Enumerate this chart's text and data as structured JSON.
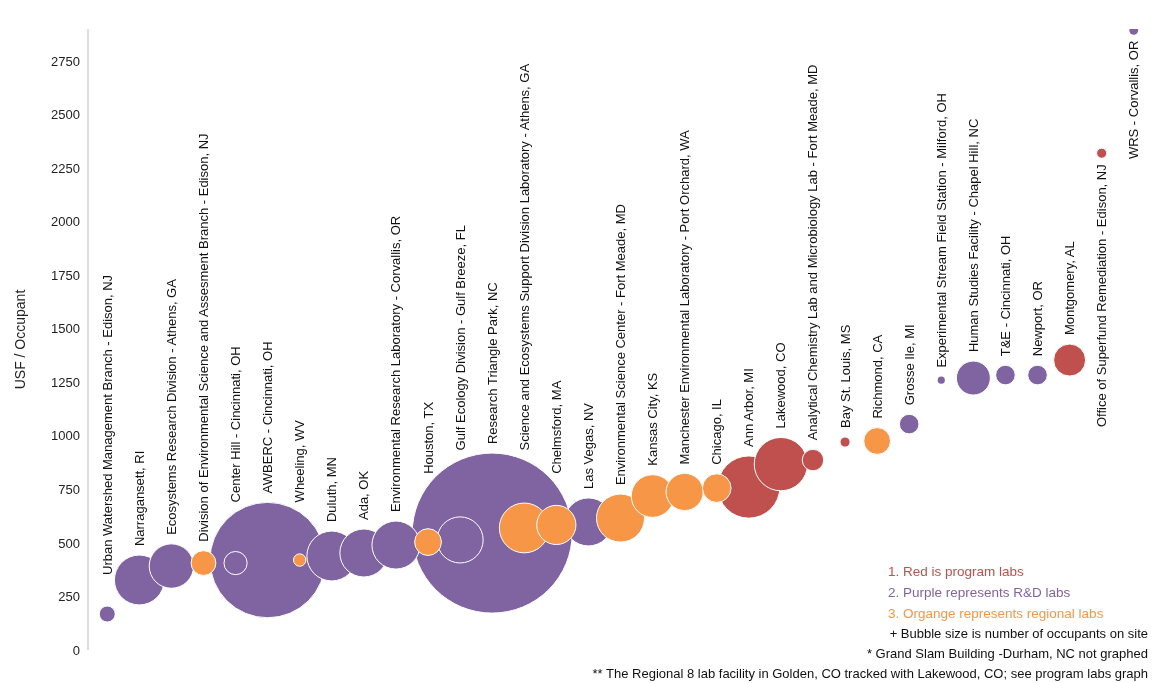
{
  "chart_data": {
    "type": "bubble",
    "ylabel": "USF / Occupant",
    "categories": [
      "Urban Watershed Management Branch - Edison, NJ",
      "Narragansett, RI",
      "Ecosystems Research Division - Athens, GA",
      "Division of Environmental Science and Assesment Branch - Edison, NJ",
      "Center Hill - Cincinnati, OH",
      "AWBERC - Cincinnati, OH",
      "Wheeling, WV",
      "Duluth, MN",
      "Ada, OK",
      "Environmental Research Laboratory - Corvallis, OR",
      "Houston, TX",
      "Gulf Ecology Division - Gulf Breeze, FL",
      "Research Triangle Park, NC",
      "Science and Ecosystems Support Division Laboratory - Athens, GA",
      "Chelmsford, MA",
      "Las Vegas, NV",
      "Environmental Science Center - Fort Meade, MD",
      "Kansas City, KS",
      "Manchester Environmental Laboratory - Port Orchard, WA",
      "Chicago, IL",
      "Ann Arbor, MI",
      "Lakewood, CO",
      "Analytical Chemistry Lab and Microbiology Lab - Fort Meade, MD",
      "Bay St. Louis, MS",
      "Richmond, CA",
      "Grosse Ile, MI",
      "Experimental Stream Field Station - Milford, OH",
      "Human Studies Facility - Chapel Hill, NC",
      "T&E - Cincinnati, OH",
      "Newport, OR",
      "Montgomery, AL",
      "Office of Superfund Remediation - Edison, NJ",
      "WRS - Corvallis, OR"
    ],
    "series": [
      {
        "name": "1. Red is program labs",
        "color": "#c0504d",
        "values": [
          null,
          null,
          null,
          null,
          null,
          null,
          null,
          null,
          null,
          null,
          null,
          null,
          null,
          null,
          null,
          null,
          null,
          null,
          null,
          null,
          761,
          868,
          887,
          971,
          null,
          null,
          null,
          null,
          null,
          null,
          1354,
          2320,
          null
        ],
        "sizes": [
          null,
          null,
          null,
          null,
          null,
          null,
          null,
          null,
          null,
          null,
          null,
          null,
          null,
          null,
          null,
          null,
          null,
          null,
          null,
          null,
          0.151,
          0.111,
          0.018,
          0.004,
          null,
          null,
          null,
          null,
          null,
          null,
          0.04,
          0.004,
          null
        ]
      },
      {
        "name": "2. Purple represents R&D labs",
        "color": "#8064a2",
        "values": [
          168,
          327,
          392,
          null,
          406,
          420,
          null,
          439,
          453,
          490,
          null,
          514,
          546,
          null,
          null,
          598,
          null,
          null,
          null,
          null,
          null,
          null,
          null,
          null,
          null,
          1055,
          1260,
          1270,
          1284,
          1284,
          null,
          null,
          2894
        ],
        "sizes": [
          0.01,
          0.097,
          0.077,
          null,
          0.021,
          0.52,
          null,
          0.097,
          0.09,
          0.09,
          null,
          0.083,
          1,
          null,
          null,
          0.09,
          null,
          null,
          null,
          null,
          null,
          null,
          null,
          null,
          null,
          0.015,
          0.002,
          0.045,
          0.015,
          0.015,
          null,
          null,
          0.003
        ]
      },
      {
        "name": "3. Organge represents regional labs",
        "color": "#f79646",
        "values": [
          null,
          null,
          null,
          406,
          null,
          null,
          420,
          null,
          null,
          null,
          504,
          null,
          null,
          570,
          584,
          null,
          616,
          719,
          738,
          756,
          null,
          null,
          null,
          null,
          976,
          null,
          null,
          null,
          null,
          null,
          null,
          null,
          null
        ],
        "sizes": [
          null,
          null,
          null,
          0.024,
          null,
          null,
          0.006,
          null,
          null,
          null,
          0.028,
          null,
          null,
          0.097,
          0.06,
          null,
          0.09,
          0.071,
          0.054,
          0.032,
          null,
          null,
          null,
          null,
          0.028,
          null,
          null,
          null,
          null,
          null,
          null,
          null,
          null
        ]
      }
    ],
    "ylim": [
      0,
      2900
    ],
    "yticks": [
      0,
      250,
      500,
      750,
      1000,
      1250,
      1500,
      1750,
      2000,
      2250,
      2500,
      2750
    ],
    "tick_labels": "y",
    "legend": "bottom right",
    "annotations": [
      "+ Bubble size is number of occupants on site",
      "* Grand Slam Building -Durham, NC not graphed",
      "** The Regional 8 lab facility in Golden, CO tracked with Lakewood, CO; see program labs graph"
    ]
  }
}
